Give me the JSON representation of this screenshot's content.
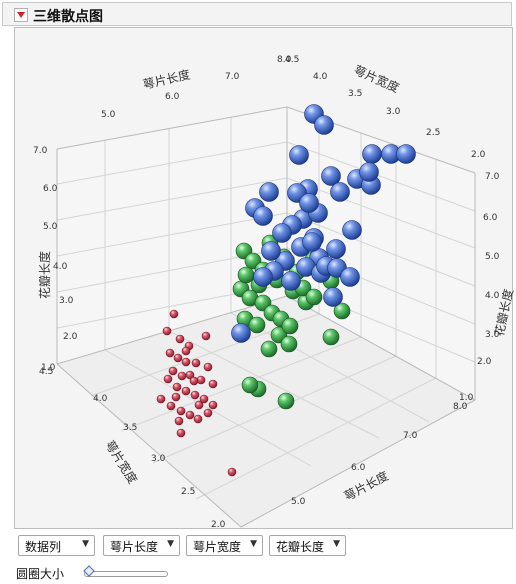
{
  "header": {
    "title": "三维散点图"
  },
  "axes": {
    "sepal_length_top": {
      "label": "萼片长度",
      "ticks": [
        "5.0",
        "6.0",
        "7.0",
        "8.0"
      ]
    },
    "sepal_width_top": {
      "label": "萼片宽度",
      "ticks": [
        "4.5",
        "4.0",
        "3.5",
        "3.0",
        "2.5",
        "2.0"
      ]
    },
    "petal_length_left": {
      "label": "花瓣长度",
      "ticks": [
        "7.0",
        "6.0",
        "5.0",
        "4.0",
        "3.0",
        "2.0",
        "1.0"
      ]
    },
    "petal_length_right": {
      "label": "花瓣长度",
      "ticks": [
        "7.0",
        "6.0",
        "5.0",
        "4.0",
        "3.0",
        "2.0",
        "1.0"
      ]
    },
    "sepal_width_front": {
      "label": "萼片宽度",
      "ticks": [
        "4.5",
        "4.0",
        "3.5",
        "3.0",
        "2.5",
        "2.0"
      ]
    },
    "sepal_length_front": {
      "label": "萼片长度",
      "ticks": [
        "5.0",
        "6.0",
        "7.0",
        "8.0"
      ]
    }
  },
  "controls": {
    "combos": [
      {
        "label": "数据列"
      },
      {
        "label": "萼片长度"
      },
      {
        "label": "萼片宽度"
      },
      {
        "label": "花瓣长度"
      }
    ],
    "size_label": "圆圈大小",
    "bubble_size": 0.05
  },
  "colors": {
    "setosa": "#d6485c",
    "versicolor": "#3fae52",
    "virginica": "#4a76d8",
    "title_red": "#d42020"
  }
}
